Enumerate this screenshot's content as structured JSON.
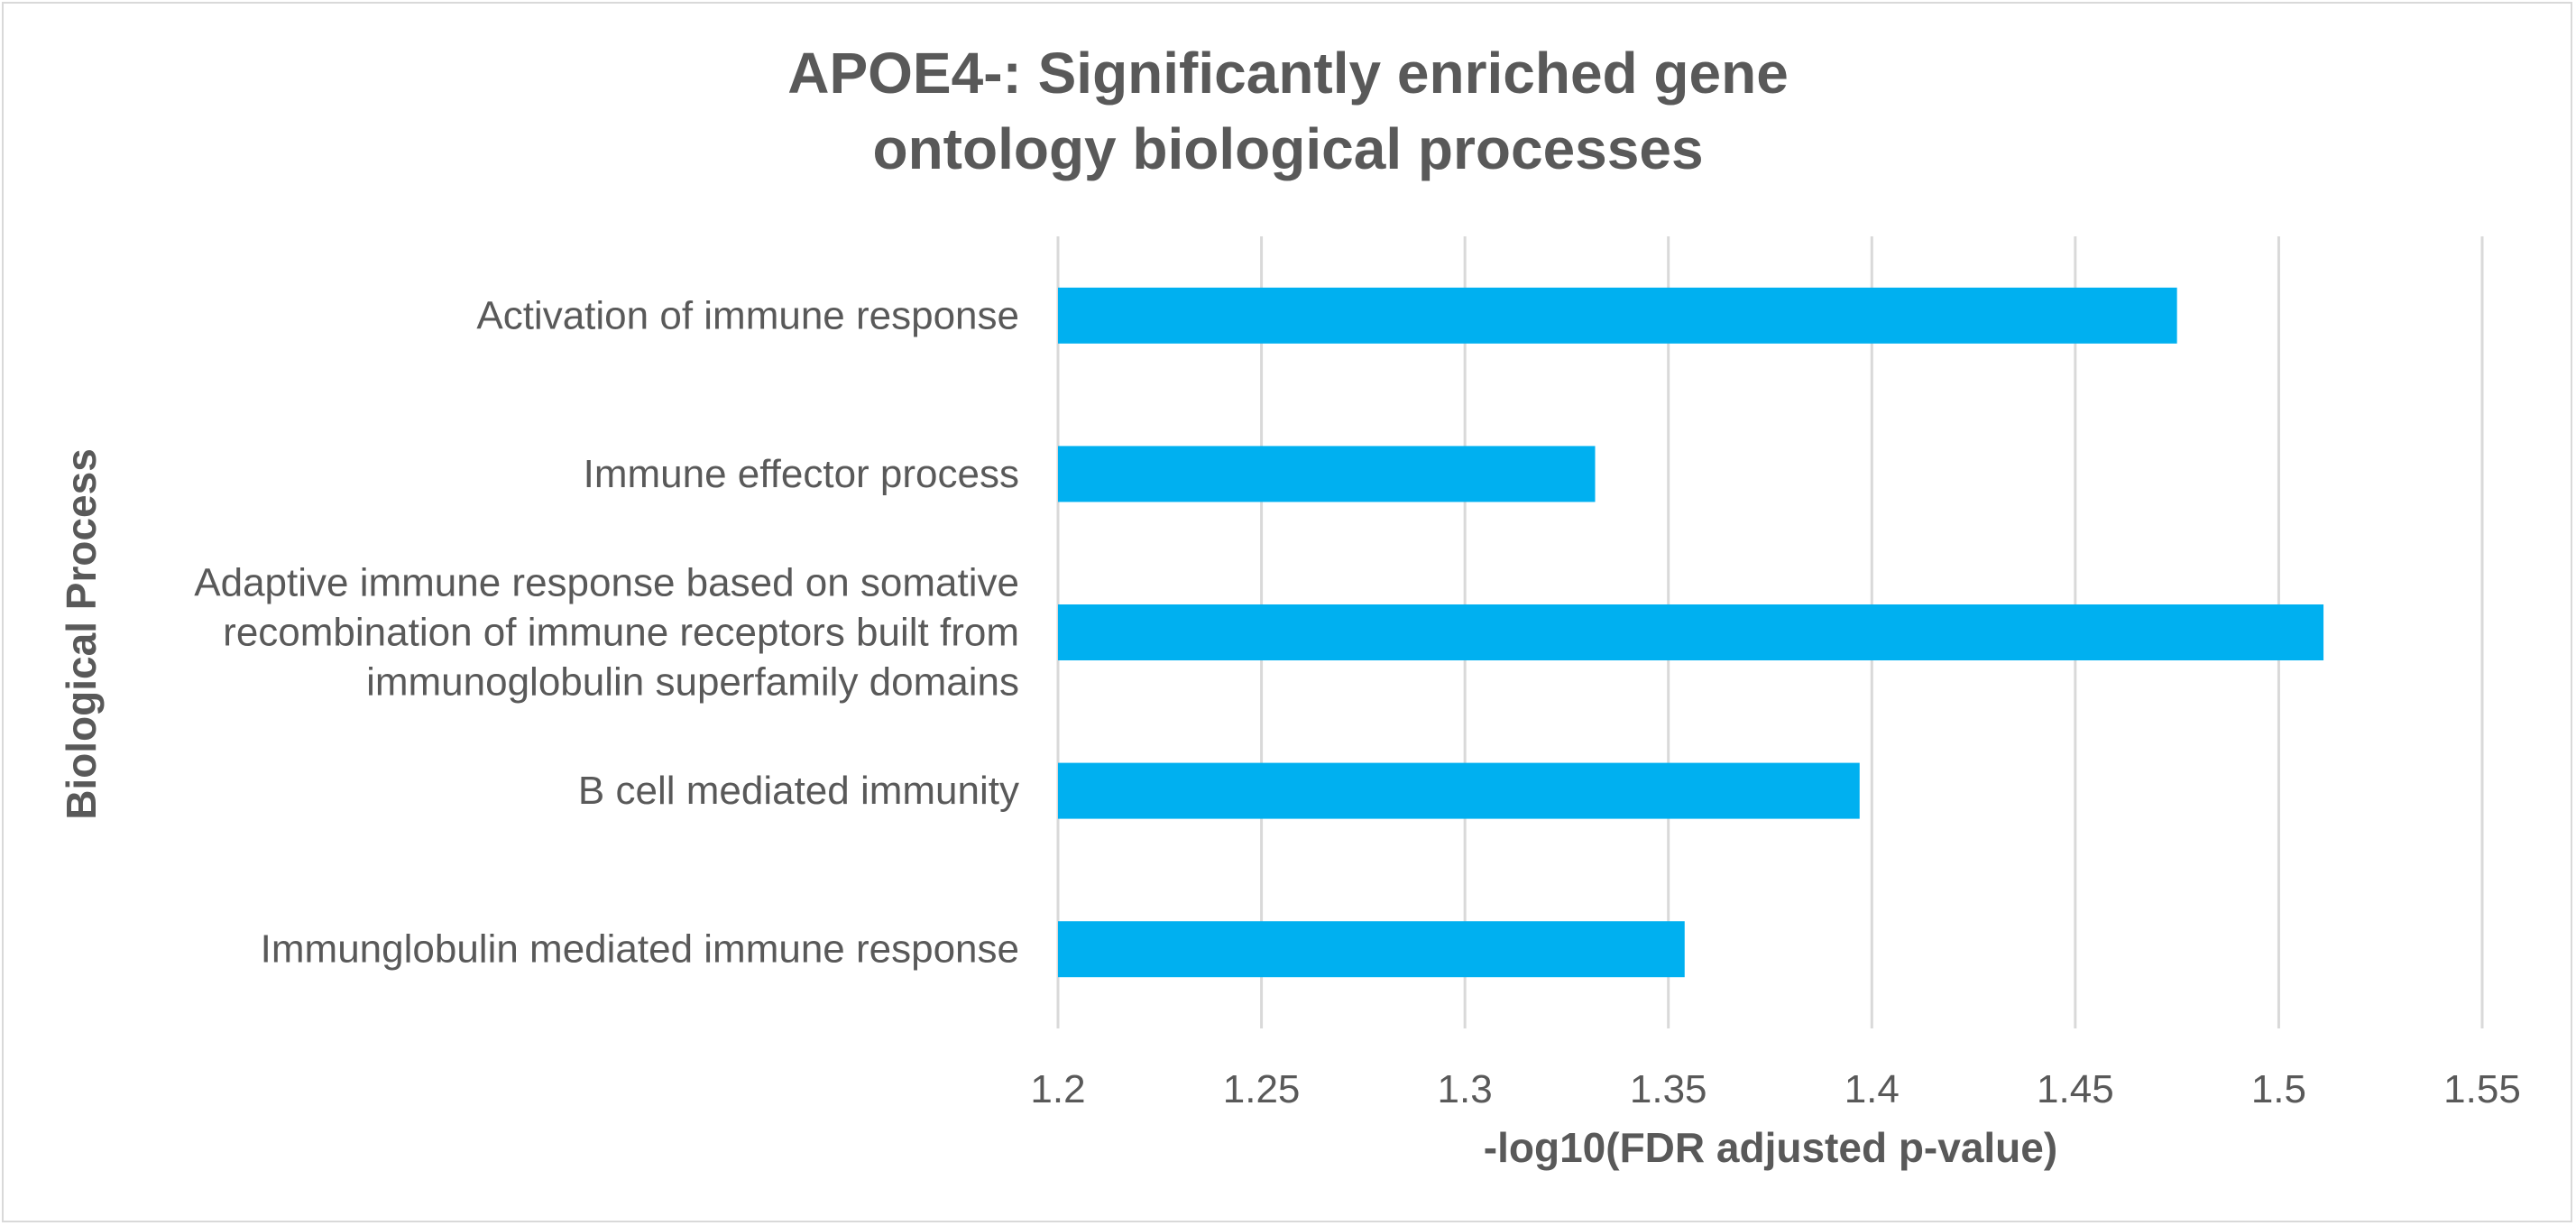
{
  "chart_data": {
    "type": "bar",
    "orientation": "horizontal",
    "title": [
      "APOE4-: Significantly enriched gene",
      "ontology biological processes"
    ],
    "xlabel": "-log10(FDR adjusted p-value)",
    "ylabel": "Biological Process",
    "categories": [
      [
        "Activation of immune response"
      ],
      [
        "Immune effector process"
      ],
      [
        "Adaptive immune response based on somative",
        "recombination of immune receptors built from",
        "immunoglobulin superfamily domains"
      ],
      [
        "B cell mediated immunity"
      ],
      [
        "Immunglobulin mediated immune response"
      ]
    ],
    "values": [
      1.475,
      1.332,
      1.511,
      1.397,
      1.354
    ],
    "xlim": [
      1.2,
      1.55
    ],
    "xticks": [
      "1.2",
      "1.25",
      "1.3",
      "1.35",
      "1.4",
      "1.45",
      "1.5",
      "1.55"
    ],
    "grid": true,
    "bar_color": "#00b0f0",
    "grid_color": "#d9d9d9"
  }
}
